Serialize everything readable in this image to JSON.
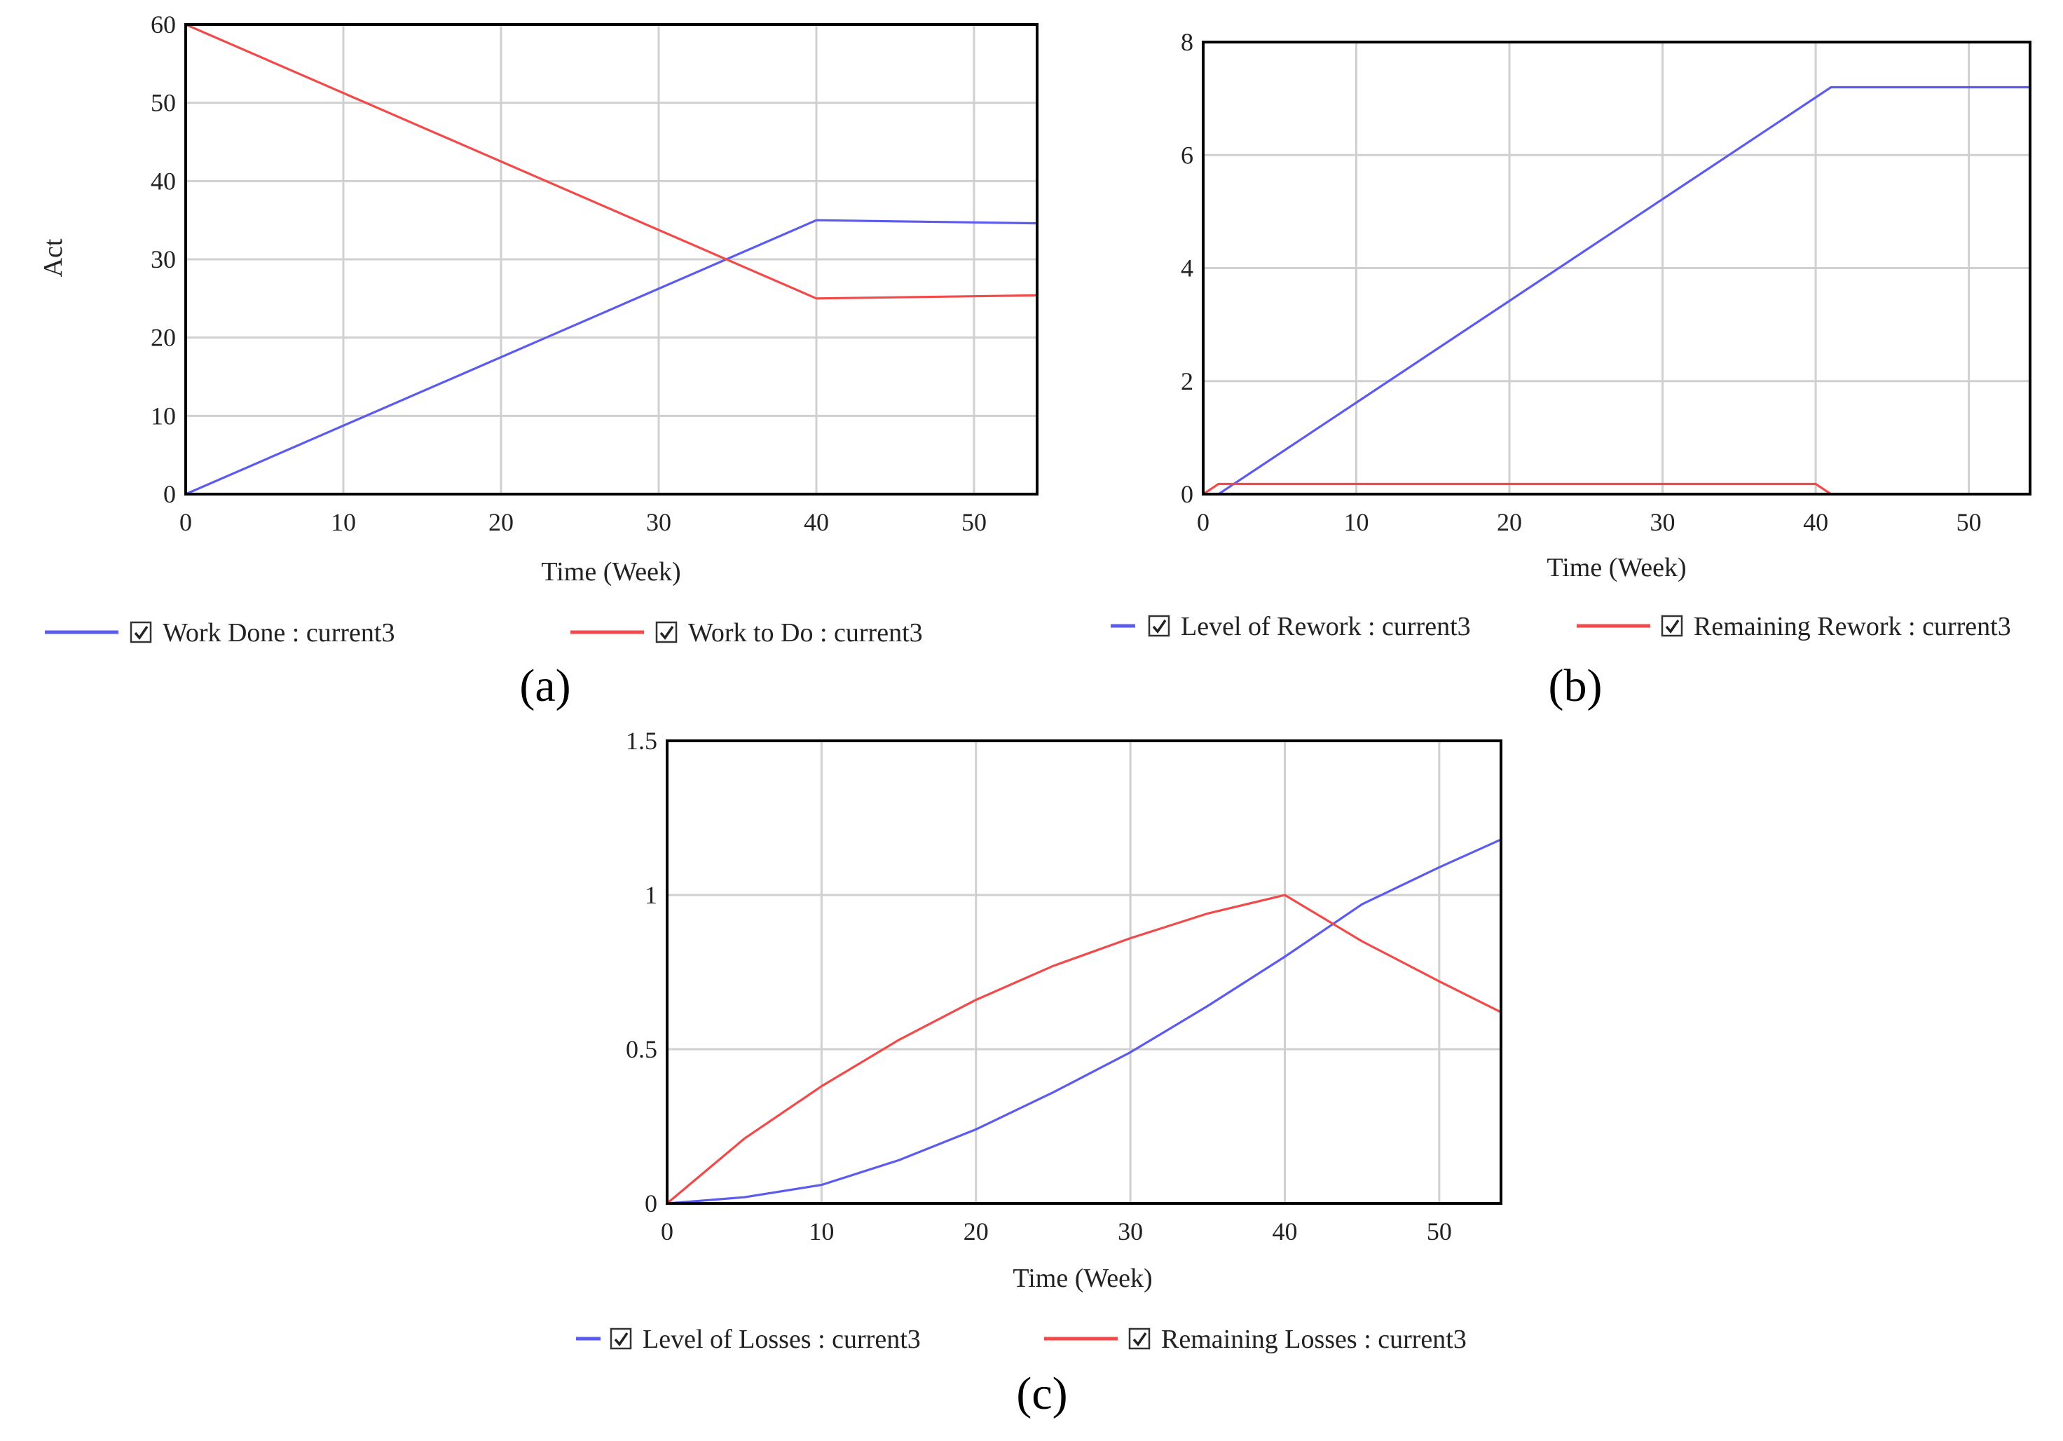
{
  "chart_data": [
    {
      "type": "line",
      "panel_label": "(a)",
      "xlabel": "Time (Week)",
      "ylabel": "Act",
      "xlim": [
        0,
        54
      ],
      "ylim": [
        0,
        60
      ],
      "x_ticks": [
        "0",
        "10",
        "20",
        "30",
        "40",
        "50"
      ],
      "y_ticks": [
        "0",
        "10",
        "20",
        "30",
        "40",
        "50",
        "60"
      ],
      "grid": true,
      "legend_position": "bottom",
      "series": [
        {
          "name": "Work Done : current3",
          "color": "#5b5bf0",
          "x": [
            0,
            40,
            54
          ],
          "y": [
            0,
            35,
            34.6
          ]
        },
        {
          "name": "Work to Do : current3",
          "color": "#f04a4a",
          "x": [
            0,
            40,
            54
          ],
          "y": [
            60,
            25,
            25.4
          ]
        }
      ]
    },
    {
      "type": "line",
      "panel_label": "(b)",
      "xlabel": "Time (Week)",
      "ylabel": "",
      "xlim": [
        0,
        54
      ],
      "ylim": [
        0,
        8
      ],
      "x_ticks": [
        "0",
        "10",
        "20",
        "30",
        "40",
        "50"
      ],
      "y_ticks": [
        "0",
        "2",
        "4",
        "6",
        "8"
      ],
      "grid": true,
      "legend_position": "bottom",
      "series": [
        {
          "name": "Level of Rework : current3",
          "color": "#5b5bf0",
          "x": [
            0,
            1,
            41,
            54
          ],
          "y": [
            0,
            0,
            7.2,
            7.2
          ]
        },
        {
          "name": "Remaining Rework : current3",
          "color": "#f04a4a",
          "x": [
            0,
            1,
            40,
            41,
            54
          ],
          "y": [
            0,
            0.18,
            0.18,
            0,
            0
          ]
        }
      ]
    },
    {
      "type": "line",
      "panel_label": "(c)",
      "xlabel": "Time (Week)",
      "ylabel": "",
      "xlim": [
        0,
        54
      ],
      "ylim": [
        0,
        1.5
      ],
      "x_ticks": [
        "0",
        "10",
        "20",
        "30",
        "40",
        "50"
      ],
      "y_ticks": [
        "0",
        "0.5",
        "1",
        "1.5"
      ],
      "grid": true,
      "legend_position": "bottom",
      "series": [
        {
          "name": "Level of Losses : current3",
          "color": "#5b5bf0",
          "x": [
            0,
            5,
            10,
            15,
            20,
            25,
            30,
            35,
            40,
            45,
            50,
            54
          ],
          "y": [
            0,
            0.02,
            0.06,
            0.14,
            0.24,
            0.36,
            0.49,
            0.64,
            0.8,
            0.97,
            1.09,
            1.18
          ]
        },
        {
          "name": "Remaining Losses : current3",
          "color": "#f04a4a",
          "x": [
            0,
            5,
            10,
            15,
            20,
            25,
            30,
            35,
            40,
            45,
            50,
            54
          ],
          "y": [
            0,
            0.21,
            0.38,
            0.53,
            0.66,
            0.77,
            0.86,
            0.94,
            1.0,
            0.85,
            0.72,
            0.62
          ]
        }
      ]
    }
  ]
}
